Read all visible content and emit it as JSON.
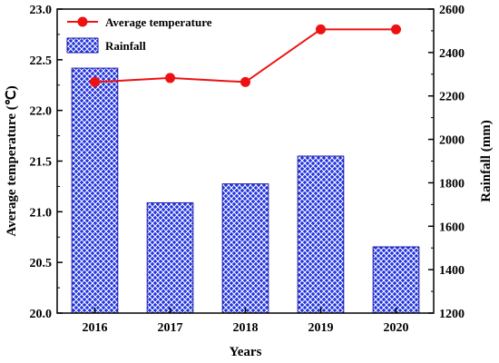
{
  "chart_data": {
    "type": "bar",
    "categories": [
      "2016",
      "2017",
      "2018",
      "2019",
      "2020"
    ],
    "series": [
      {
        "name": "Rainfall",
        "kind": "bar",
        "axis": "right",
        "values": [
          2328,
          1708,
          1795,
          1923,
          1505
        ],
        "color": "#2233dd"
      },
      {
        "name": "Average temperature",
        "kind": "line",
        "axis": "left",
        "values": [
          22.28,
          22.32,
          22.28,
          22.8,
          22.8
        ],
        "color": "#ee1111"
      }
    ],
    "xlabel": "Years",
    "ylabel": "Average temperature (℃)",
    "y2label": "Rainfall (mm)",
    "ylim": [
      20.0,
      23.0
    ],
    "y2lim": [
      1200,
      2600
    ],
    "yticks": [
      "20.0",
      "20.5",
      "21.0",
      "21.5",
      "22.0",
      "22.5",
      "23.0"
    ],
    "y2ticks": [
      "1200",
      "1400",
      "1600",
      "1800",
      "2000",
      "2200",
      "2400",
      "2600"
    ],
    "legend_position": "top-left",
    "grid": false
  }
}
